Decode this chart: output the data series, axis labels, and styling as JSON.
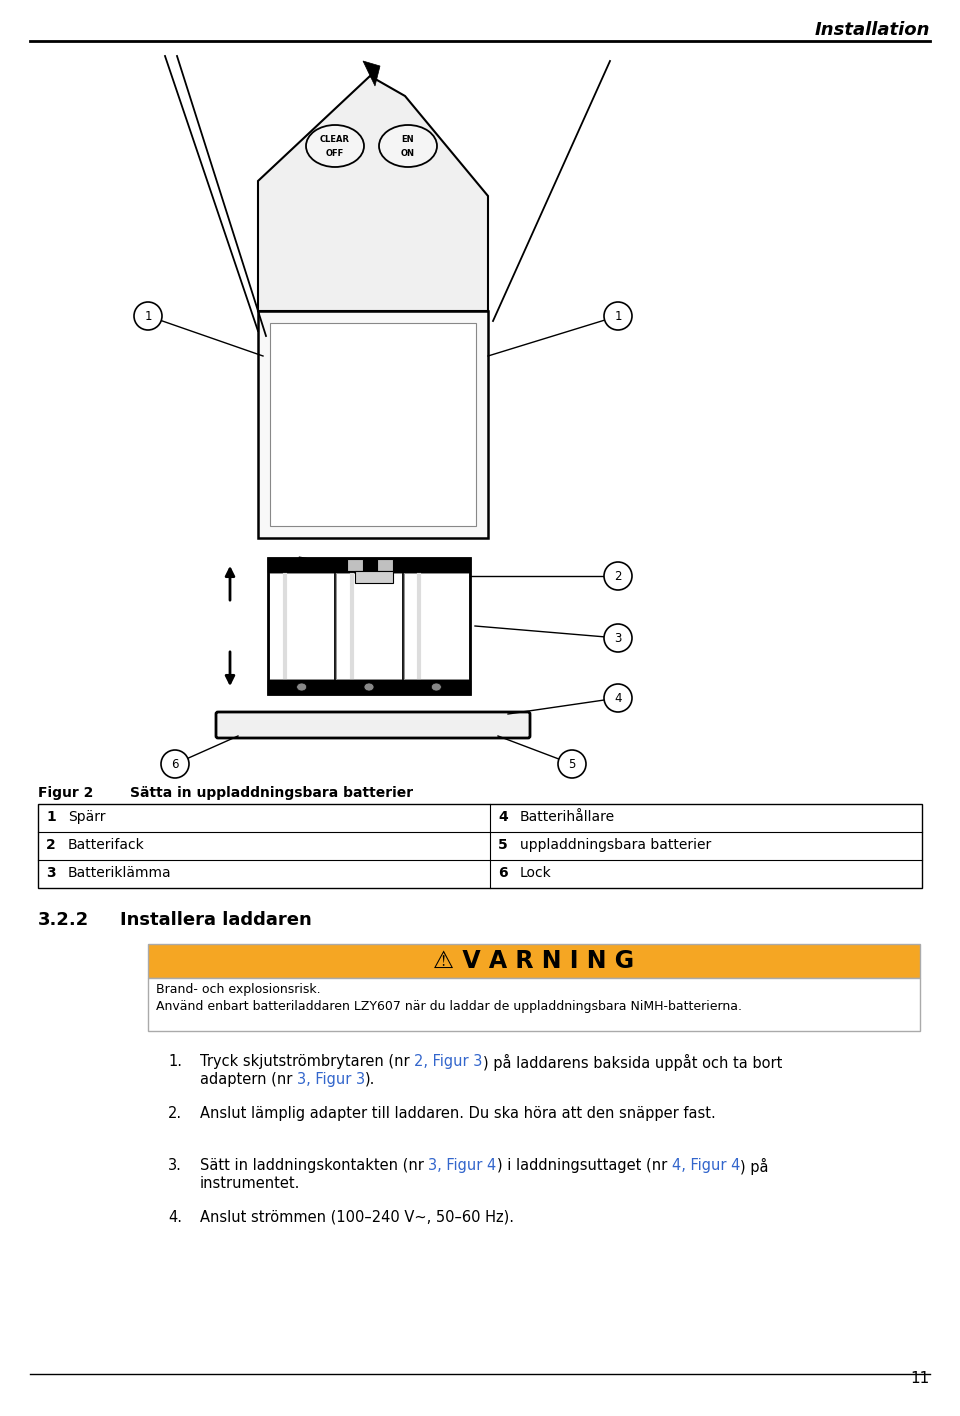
{
  "title": "Installation",
  "page_number": "11",
  "fig_label": "Figur 2",
  "fig_title": "Sätta in uppladdningsbara batterier",
  "table_rows": [
    [
      "1",
      "Spärr",
      "4",
      "Batterihållare"
    ],
    [
      "2",
      "Batterifack",
      "5",
      "uppladdningsbara batterier"
    ],
    [
      "3",
      "Batteriklämma",
      "6",
      "Lock"
    ]
  ],
  "section": "3.2.2",
  "section_title": "Installera laddaren",
  "warning_title": "⚠ V A R N I N G",
  "warning_bg": "#F5A623",
  "warning_line1": "Brand- och explosionsrisk.",
  "warning_line2": "Använd enbart batteriladdaren LZY607 när du laddar de uppladdningsbara NiMH-batterierna.",
  "steps": [
    {
      "num": "1.",
      "lines": [
        [
          {
            "text": "Tryck skjutströmbrytaren (nr ",
            "bold": false,
            "color": "black"
          },
          {
            "text": "2, Figur 3",
            "bold": false,
            "color": "#3366CC"
          },
          {
            "text": ") på laddarens baksida uppåt och ta bort",
            "bold": false,
            "color": "black"
          }
        ],
        [
          {
            "text": "adaptern (nr ",
            "bold": false,
            "color": "black"
          },
          {
            "text": "3, Figur 3",
            "bold": false,
            "color": "#3366CC"
          },
          {
            "text": ").",
            "bold": false,
            "color": "black"
          }
        ]
      ]
    },
    {
      "num": "2.",
      "lines": [
        [
          {
            "text": "Anslut lämplig adapter till laddaren. Du ska höra att den snäpper fast.",
            "bold": false,
            "color": "black"
          }
        ]
      ]
    },
    {
      "num": "3.",
      "lines": [
        [
          {
            "text": "Sätt in laddningskontakten (nr ",
            "bold": false,
            "color": "black"
          },
          {
            "text": "3, Figur 4",
            "bold": false,
            "color": "#3366CC"
          },
          {
            "text": ") i laddningsuttaget (nr ",
            "bold": false,
            "color": "black"
          },
          {
            "text": "4, Figur 4",
            "bold": false,
            "color": "#3366CC"
          },
          {
            "text": ") på",
            "bold": false,
            "color": "black"
          }
        ],
        [
          {
            "text": "instrumentet.",
            "bold": false,
            "color": "black"
          }
        ]
      ]
    },
    {
      "num": "4.",
      "lines": [
        [
          {
            "text": "Anslut strömmen (100–240 V~, 50–60 Hz).",
            "bold": false,
            "color": "black"
          }
        ]
      ]
    }
  ],
  "background_color": "#FFFFFF"
}
